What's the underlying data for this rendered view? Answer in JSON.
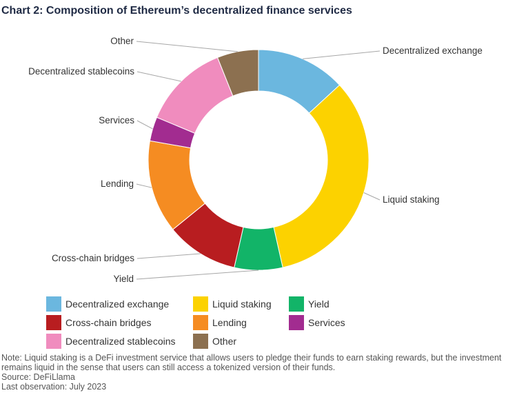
{
  "title": "Chart 2: Composition of Ethereum’s decentralized finance services",
  "chart_data": {
    "type": "pie",
    "donut": true,
    "title": "Chart 2: Composition of Ethereum’s decentralized finance services",
    "categories": [
      "Decentralized exchange",
      "Liquid staking",
      "Yield",
      "Cross-chain bridges",
      "Lending",
      "Services",
      "Decentralized stablecoins",
      "Other"
    ],
    "values": [
      13.0,
      33.0,
      7.0,
      10.5,
      13.5,
      3.5,
      12.5,
      6.0
    ],
    "colors": [
      "#6bb7df",
      "#fcd200",
      "#12b468",
      "#b81d20",
      "#f58c22",
      "#a22c90",
      "#f08cbe",
      "#8c7050"
    ],
    "legend_position": "bottom"
  },
  "legend": {
    "items": [
      {
        "label": "Decentralized exchange",
        "color": "#6bb7df"
      },
      {
        "label": "Liquid staking",
        "color": "#fcd200"
      },
      {
        "label": "Yield",
        "color": "#12b468"
      },
      {
        "label": "Cross-chain bridges",
        "color": "#b81d20"
      },
      {
        "label": "Lending",
        "color": "#f58c22"
      },
      {
        "label": "Services",
        "color": "#a22c90"
      },
      {
        "label": "Decentralized stablecoins",
        "color": "#f08cbe"
      },
      {
        "label": "Other",
        "color": "#8c7050"
      }
    ]
  },
  "footnote": {
    "note": "Note: Liquid staking is a DeFi investment service that allows users to pledge their funds to earn staking rewards, but the investment remains liquid in the sense that users can still access a tokenized version of their funds.",
    "source": "Source: DeFiLlama",
    "last_observation": "Last observation: July 2023"
  }
}
